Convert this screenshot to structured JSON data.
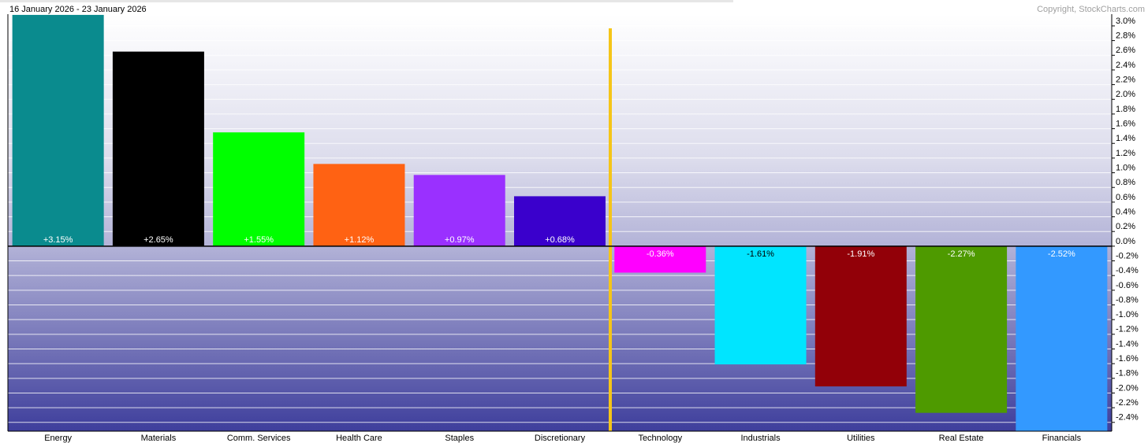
{
  "chart_data": {
    "type": "bar",
    "date_range": "16 January 2026 - 23 January 2026",
    "copyright": "Copyright, StockCharts.com",
    "categories": [
      "Energy",
      "Materials",
      "Comm. Services",
      "Health Care",
      "Staples",
      "Discretionary",
      "Technology",
      "Industrials",
      "Utilities",
      "Real Estate",
      "Financials"
    ],
    "values": [
      3.15,
      2.65,
      1.55,
      1.12,
      0.97,
      0.68,
      -0.36,
      -1.61,
      -1.91,
      -2.27,
      -2.52
    ],
    "value_labels": [
      "+3.15%",
      "+2.65%",
      "+1.55%",
      "+1.12%",
      "+0.97%",
      "+0.68%",
      "-0.36%",
      "-1.61%",
      "-1.91%",
      "-2.27%",
      "-2.52%"
    ],
    "colors": [
      "#0a8b8e",
      "#000000",
      "#00ff00",
      "#ff6213",
      "#9a30ff",
      "#3a00cc",
      "#ff00ff",
      "#00e5ff",
      "#920008",
      "#4e9a00",
      "#3399ff"
    ],
    "ylim": [
      -2.52,
      3.16
    ],
    "yticks": [
      {
        "value": 3.0,
        "label": "3.0%"
      },
      {
        "value": 2.8,
        "label": "2.8%"
      },
      {
        "value": 2.6,
        "label": "2.6%"
      },
      {
        "value": 2.4,
        "label": "2.4%"
      },
      {
        "value": 2.2,
        "label": "2.2%"
      },
      {
        "value": 2.0,
        "label": "2.0%"
      },
      {
        "value": 1.8,
        "label": "1.8%"
      },
      {
        "value": 1.6,
        "label": "1.6%"
      },
      {
        "value": 1.4,
        "label": "1.4%"
      },
      {
        "value": 1.2,
        "label": "1.2%"
      },
      {
        "value": 1.0,
        "label": "1.0%"
      },
      {
        "value": 0.8,
        "label": "0.8%"
      },
      {
        "value": 0.6,
        "label": "0.6%"
      },
      {
        "value": 0.4,
        "label": "0.4%"
      },
      {
        "value": 0.2,
        "label": "0.2%"
      },
      {
        "value": 0.0,
        "label": "0.0%"
      },
      {
        "value": -0.2,
        "label": "-0.2%"
      },
      {
        "value": -0.4,
        "label": "-0.4%"
      },
      {
        "value": -0.6,
        "label": "-0.6%"
      },
      {
        "value": -0.8,
        "label": "-0.8%"
      },
      {
        "value": -1.0,
        "label": "-1.0%"
      },
      {
        "value": -1.2,
        "label": "-1.2%"
      },
      {
        "value": -1.4,
        "label": "-1.4%"
      },
      {
        "value": -1.6,
        "label": "-1.6%"
      },
      {
        "value": -1.8,
        "label": "-1.8%"
      },
      {
        "value": -2.0,
        "label": "-2.0%"
      },
      {
        "value": -2.2,
        "label": "-2.2%"
      },
      {
        "value": -2.4,
        "label": "-2.4%"
      }
    ],
    "grid": true
  }
}
